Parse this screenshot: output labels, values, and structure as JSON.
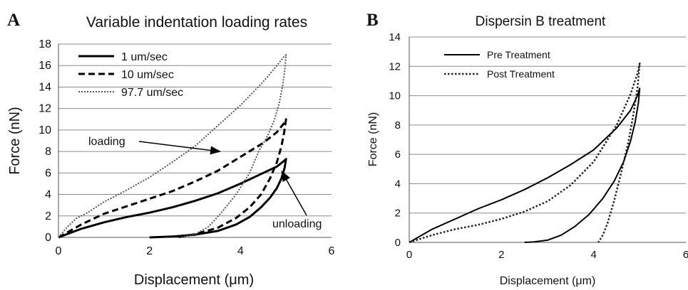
{
  "chart_data": [
    {
      "panel_label": "A",
      "type": "line",
      "title": "Variable indentation loading rates",
      "xlabel": "Displacement (μm)",
      "ylabel": "Force (nN)",
      "xlim": [
        0,
        6
      ],
      "ylim": [
        0,
        18
      ],
      "xticks": [
        "0",
        "2",
        "4",
        "6"
      ],
      "yticks": [
        "0",
        "2",
        "4",
        "6",
        "8",
        "10",
        "12",
        "14",
        "16",
        "18"
      ],
      "grid": "horizontal",
      "legend_position": "top-left",
      "annotations": {
        "loading": {
          "text": "loading",
          "x": 3.55,
          "y": 8.0
        },
        "unloading": {
          "text": "unloading",
          "x": 5.0,
          "y": 6.0
        }
      },
      "series": [
        {
          "name": "1 um/sec",
          "dash": "solid",
          "x": [
            0,
            0.5,
            1.0,
            1.5,
            2.0,
            2.5,
            3.0,
            3.5,
            4.0,
            4.5,
            4.8,
            4.95,
            5.0,
            4.97,
            4.9,
            4.8,
            4.65,
            4.45,
            4.2,
            3.9,
            3.5,
            3.0,
            2.5,
            2.0
          ],
          "y": [
            0,
            0.8,
            1.4,
            1.9,
            2.3,
            2.8,
            3.4,
            4.1,
            5.0,
            6.0,
            6.6,
            7.1,
            7.3,
            6.5,
            5.5,
            4.6,
            3.7,
            2.8,
            1.9,
            1.2,
            0.6,
            0.25,
            0.08,
            0
          ]
        },
        {
          "name": "10 um/sec",
          "dash": "dashed",
          "x": [
            0,
            0.5,
            1.0,
            1.5,
            2.0,
            2.5,
            3.0,
            3.5,
            4.0,
            4.5,
            4.8,
            4.95,
            5.0,
            4.96,
            4.9,
            4.8,
            4.65,
            4.45,
            4.2,
            3.9,
            3.5,
            3.0,
            2.6
          ],
          "y": [
            0,
            1.2,
            2.2,
            2.9,
            3.6,
            4.3,
            5.2,
            6.2,
            7.5,
            8.8,
            9.8,
            10.6,
            11.0,
            9.8,
            8.5,
            7.0,
            5.5,
            4.0,
            2.8,
            1.8,
            0.9,
            0.3,
            0
          ]
        },
        {
          "name": "97.7 um/sec",
          "dash": "dotted",
          "x": [
            0,
            0.2,
            0.4,
            0.6,
            1.0,
            1.5,
            2.0,
            2.5,
            3.0,
            3.5,
            4.0,
            4.5,
            4.8,
            4.95,
            5.0,
            4.97,
            4.92,
            4.85,
            4.75,
            4.6,
            4.4,
            4.2,
            3.9,
            3.6,
            3.3,
            3.0,
            2.7
          ],
          "y": [
            0,
            1.0,
            1.8,
            2.2,
            3.3,
            4.4,
            5.6,
            7.0,
            8.5,
            10.4,
            12.3,
            14.5,
            16.0,
            16.8,
            17.0,
            15.5,
            14.0,
            12.5,
            11.0,
            9.5,
            8.0,
            6.0,
            4.0,
            2.4,
            1.0,
            0.3,
            0
          ]
        }
      ]
    },
    {
      "panel_label": "B",
      "type": "line",
      "title": "Dispersin B treatment",
      "xlabel": "Displacement (μm)",
      "ylabel": "Force (nN)",
      "xlim": [
        0,
        6
      ],
      "ylim": [
        0,
        14
      ],
      "xticks": [
        "0",
        "2",
        "4",
        "6"
      ],
      "yticks": [
        "0",
        "2",
        "4",
        "6",
        "8",
        "10",
        "12",
        "14"
      ],
      "grid": "horizontal",
      "legend_position": "top-left",
      "series": [
        {
          "name": "Pre Treatment",
          "dash": "solid",
          "x": [
            0,
            0.5,
            1.0,
            1.5,
            2.0,
            2.5,
            3.0,
            3.5,
            4.0,
            4.5,
            4.8,
            4.95,
            5.0,
            4.97,
            4.9,
            4.8,
            4.65,
            4.45,
            4.2,
            3.9,
            3.6,
            3.3,
            3.0,
            2.7,
            2.5
          ],
          "y": [
            0,
            0.9,
            1.6,
            2.3,
            2.9,
            3.6,
            4.4,
            5.3,
            6.3,
            7.8,
            9.0,
            10.0,
            10.5,
            9.5,
            8.2,
            6.9,
            5.5,
            4.2,
            3.0,
            1.9,
            1.1,
            0.5,
            0.15,
            0.03,
            0
          ]
        },
        {
          "name": "Post Treatment",
          "dash": "dotted",
          "x": [
            0,
            0.5,
            1.0,
            1.5,
            2.0,
            2.5,
            3.0,
            3.5,
            4.0,
            4.5,
            4.8,
            4.95,
            5.0,
            4.95,
            4.85,
            4.75,
            4.6,
            4.45,
            4.3,
            4.2,
            4.1
          ],
          "y": [
            0,
            0.5,
            0.9,
            1.2,
            1.6,
            2.1,
            2.8,
            3.9,
            5.5,
            8.0,
            10.1,
            11.5,
            12.2,
            10.5,
            8.5,
            6.8,
            4.8,
            2.9,
            1.3,
            0.5,
            0
          ]
        }
      ]
    }
  ]
}
